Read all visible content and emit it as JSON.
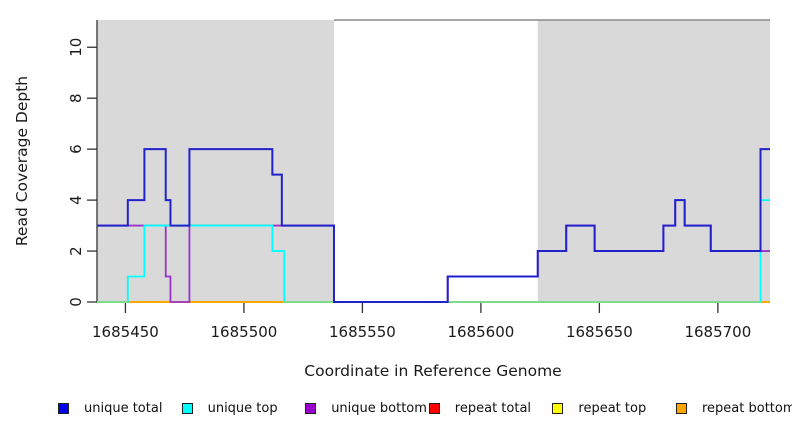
{
  "chart_data": {
    "type": "line",
    "subtype": "step-coverage-plot",
    "title": "",
    "xlabel": "Coordinate in Reference Genome",
    "ylabel": "Read Coverage Depth",
    "xlim": [
      1685438,
      1685722
    ],
    "ylim": [
      0,
      11.07
    ],
    "x_ticks": [
      1685450,
      1685500,
      1685550,
      1685600,
      1685650,
      1685700
    ],
    "y_ticks": [
      0,
      2,
      4,
      6,
      8,
      10
    ],
    "grid": "off",
    "legend_position": "bottom",
    "shaded_color": "#D9D9D9",
    "gap_border_color": "#8a8a8a",
    "shaded_regions": [
      {
        "from": 1685438,
        "to": 1685538
      },
      {
        "from": 1685624,
        "to": 1685722
      }
    ],
    "unshaded_gap": {
      "from": 1685538,
      "to": 1685624
    },
    "series": [
      {
        "name": "unique total",
        "color": "#2222cc",
        "steps": [
          [
            1685438,
            3
          ],
          [
            1685451,
            4
          ],
          [
            1685458,
            6
          ],
          [
            1685467,
            4
          ],
          [
            1685469,
            3
          ],
          [
            1685477,
            6
          ],
          [
            1685512,
            5
          ],
          [
            1685516,
            3
          ],
          [
            1685538,
            0
          ],
          [
            1685586,
            1
          ],
          [
            1685624,
            2
          ],
          [
            1685636,
            3
          ],
          [
            1685648,
            2
          ],
          [
            1685677,
            3
          ],
          [
            1685682,
            4
          ],
          [
            1685686,
            3
          ],
          [
            1685697,
            2
          ],
          [
            1685718,
            6
          ]
        ]
      },
      {
        "name": "unique top",
        "color": "#00ffff",
        "steps": [
          [
            1685438,
            0
          ],
          [
            1685451,
            1
          ],
          [
            1685458,
            3
          ],
          [
            1685512,
            2
          ],
          [
            1685517,
            0
          ],
          [
            1685718,
            4
          ]
        ]
      },
      {
        "name": "unique bottom",
        "color": "#9933cc",
        "steps": [
          [
            1685438,
            3
          ],
          [
            1685467,
            1
          ],
          [
            1685469,
            0
          ],
          [
            1685477,
            3
          ],
          [
            1685538,
            0
          ],
          [
            1685586,
            1
          ],
          [
            1685624,
            2
          ],
          [
            1685636,
            3
          ],
          [
            1685648,
            2
          ],
          [
            1685677,
            3
          ],
          [
            1685682,
            4
          ],
          [
            1685686,
            3
          ],
          [
            1685697,
            2
          ]
        ]
      },
      {
        "name": "repeat total",
        "color": "#ee0000",
        "steps": [
          [
            1685438,
            0
          ]
        ]
      },
      {
        "name": "repeat top",
        "color": "#ffff00",
        "steps": [
          [
            1685438,
            0
          ]
        ]
      },
      {
        "name": "repeat bottom",
        "color": "#ffa500",
        "steps": [
          [
            1685438,
            0
          ]
        ]
      }
    ],
    "baseline_visible_blend_segments": [
      {
        "from": 1685438,
        "to": 1685451,
        "color": "#84da84"
      },
      {
        "from": 1685517,
        "to": 1685718,
        "color": "#84da84"
      }
    ],
    "legend": [
      {
        "label": "unique total",
        "color": "#0000ee"
      },
      {
        "label": "unique top",
        "color": "#00ffff"
      },
      {
        "label": "unique bottom",
        "color": "#9900cc"
      },
      {
        "label": "repeat total",
        "color": "#ff0000"
      },
      {
        "label": "repeat top",
        "color": "#ffff00"
      },
      {
        "label": "repeat bottom",
        "color": "#ffa500"
      }
    ]
  }
}
